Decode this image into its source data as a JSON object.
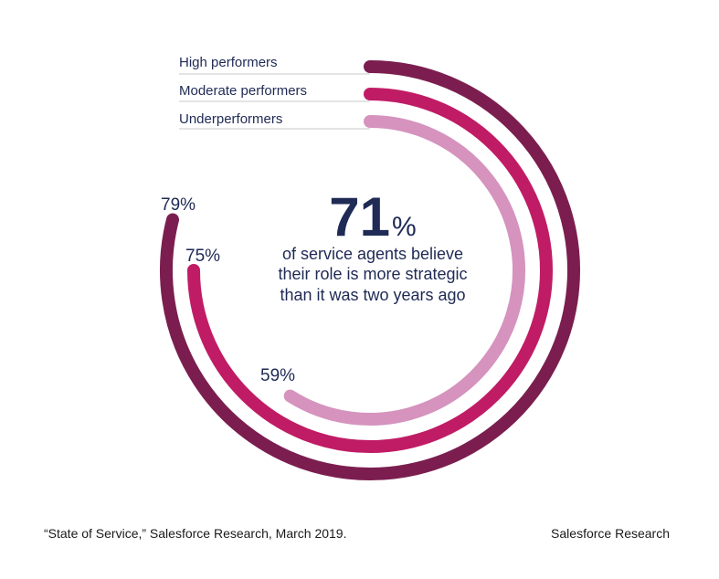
{
  "chart_data": {
    "type": "radial-bar",
    "series": [
      {
        "name": "High performers",
        "value": 79,
        "label": "79%",
        "color": "#7b1e4f"
      },
      {
        "name": "Moderate performers",
        "value": 75,
        "label": "75%",
        "color": "#c01c65"
      },
      {
        "name": "Underperformers",
        "value": 59,
        "label": "59%",
        "color": "#d593be"
      }
    ],
    "value_range": [
      0,
      100
    ],
    "legend_placement": "top-left"
  },
  "headline": {
    "number": "71",
    "unit": "%",
    "lines": [
      "of service agents believe",
      "their role is more strategic",
      "than it was two years ago"
    ]
  },
  "footer": {
    "source": "“State of Service,” Salesforce Research, March 2019.",
    "brand": "Salesforce Research"
  }
}
